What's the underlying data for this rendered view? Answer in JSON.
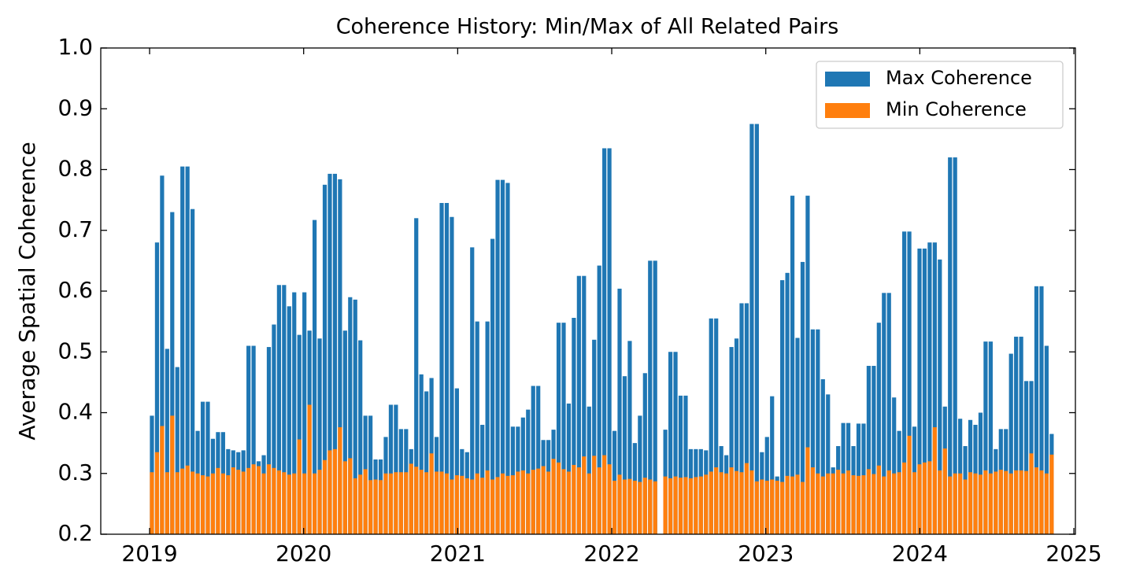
{
  "chart_data": {
    "type": "bar",
    "title": "Coherence History: Min/Max of All Related Pairs",
    "y_label": "Average Spatial Coherence",
    "xlim": [
      2018.683,
      2025.01
    ],
    "xticks": [
      2019,
      2020,
      2021,
      2022,
      2023,
      2024,
      2025
    ],
    "ylim": [
      0.2,
      1.0
    ],
    "yticks": [
      0.2,
      0.3,
      0.4,
      0.5,
      0.6,
      0.7,
      0.8,
      0.9,
      {
        "value": 1.0,
        "label": "1.0"
      }
    ],
    "legend": "upper right",
    "x": [
      2019.015,
      2019.048,
      2019.081,
      2019.114,
      2019.147,
      2019.18,
      2019.213,
      2019.246,
      2019.279,
      2019.312,
      2019.345,
      2019.378,
      2019.411,
      2019.444,
      2019.477,
      2019.51,
      2019.543,
      2019.576,
      2019.609,
      2019.642,
      2019.675,
      2019.708,
      2019.741,
      2019.774,
      2019.807,
      2019.84,
      2019.873,
      2019.906,
      2019.939,
      2019.972,
      2020.005,
      2020.038,
      2020.071,
      2020.104,
      2020.137,
      2020.17,
      2020.203,
      2020.236,
      2020.269,
      2020.302,
      2020.335,
      2020.368,
      2020.401,
      2020.434,
      2020.467,
      2020.5,
      2020.533,
      2020.566,
      2020.599,
      2020.632,
      2020.665,
      2020.698,
      2020.731,
      2020.764,
      2020.797,
      2020.83,
      2020.863,
      2020.896,
      2020.929,
      2020.962,
      2020.995,
      2021.028,
      2021.061,
      2021.094,
      2021.127,
      2021.16,
      2021.193,
      2021.226,
      2021.259,
      2021.292,
      2021.325,
      2021.358,
      2021.391,
      2021.424,
      2021.457,
      2021.49,
      2021.523,
      2021.556,
      2021.589,
      2021.622,
      2021.655,
      2021.688,
      2021.721,
      2021.754,
      2021.787,
      2021.82,
      2021.853,
      2021.886,
      2021.919,
      2021.952,
      2021.985,
      2022.018,
      2022.051,
      2022.084,
      2022.117,
      2022.15,
      2022.183,
      2022.216,
      2022.249,
      2022.282,
      2022.348,
      2022.381,
      2022.414,
      2022.447,
      2022.48,
      2022.513,
      2022.546,
      2022.579,
      2022.612,
      2022.645,
      2022.678,
      2022.711,
      2022.744,
      2022.777,
      2022.81,
      2022.843,
      2022.876,
      2022.909,
      2022.942,
      2022.975,
      2023.008,
      2023.041,
      2023.074,
      2023.107,
      2023.14,
      2023.173,
      2023.206,
      2023.239,
      2023.272,
      2023.305,
      2023.338,
      2023.371,
      2023.404,
      2023.437,
      2023.47,
      2023.503,
      2023.536,
      2023.569,
      2023.602,
      2023.635,
      2023.668,
      2023.701,
      2023.734,
      2023.767,
      2023.8,
      2023.833,
      2023.866,
      2023.899,
      2023.932,
      2023.965,
      2023.998,
      2024.031,
      2024.064,
      2024.097,
      2024.13,
      2024.163,
      2024.196,
      2024.229,
      2024.262,
      2024.295,
      2024.328,
      2024.361,
      2024.394,
      2024.427,
      2024.46,
      2024.493,
      2024.526,
      2024.559,
      2024.592,
      2024.625,
      2024.658,
      2024.691,
      2024.724,
      2024.757,
      2024.79,
      2024.823,
      2024.856
    ],
    "series": [
      {
        "name": "Max Coherence",
        "color": "#1f77b4",
        "values": [
          0.395,
          0.68,
          0.79,
          0.505,
          0.73,
          0.475,
          0.805,
          0.805,
          0.735,
          0.37,
          0.418,
          0.418,
          0.357,
          0.368,
          0.368,
          0.34,
          0.338,
          0.335,
          0.338,
          0.51,
          0.51,
          0.32,
          0.33,
          0.508,
          0.545,
          0.61,
          0.61,
          0.575,
          0.598,
          0.528,
          0.598,
          0.535,
          0.717,
          0.522,
          0.775,
          0.793,
          0.793,
          0.784,
          0.535,
          0.59,
          0.586,
          0.519,
          0.395,
          0.395,
          0.323,
          0.323,
          0.36,
          0.413,
          0.413,
          0.373,
          0.373,
          0.34,
          0.72,
          0.463,
          0.435,
          0.457,
          0.36,
          0.745,
          0.745,
          0.722,
          0.44,
          0.34,
          0.335,
          0.672,
          0.55,
          0.38,
          0.55,
          0.686,
          0.783,
          0.783,
          0.778,
          0.377,
          0.377,
          0.392,
          0.405,
          0.444,
          0.444,
          0.355,
          0.355,
          0.372,
          0.548,
          0.548,
          0.415,
          0.556,
          0.625,
          0.625,
          0.41,
          0.52,
          0.642,
          0.835,
          0.835,
          0.37,
          0.604,
          0.46,
          0.518,
          0.35,
          0.395,
          0.465,
          0.65,
          0.65,
          0.372,
          0.5,
          0.5,
          0.428,
          0.428,
          0.34,
          0.34,
          0.34,
          0.338,
          0.555,
          0.555,
          0.345,
          0.33,
          0.508,
          0.522,
          0.58,
          0.58,
          0.875,
          0.875,
          0.335,
          0.36,
          0.427,
          0.295,
          0.618,
          0.63,
          0.757,
          0.523,
          0.648,
          0.757,
          0.537,
          0.537,
          0.455,
          0.43,
          0.31,
          0.345,
          0.383,
          0.383,
          0.345,
          0.382,
          0.382,
          0.477,
          0.477,
          0.548,
          0.597,
          0.597,
          0.425,
          0.37,
          0.698,
          0.698,
          0.377,
          0.67,
          0.67,
          0.68,
          0.68,
          0.652,
          0.41,
          0.82,
          0.82,
          0.39,
          0.345,
          0.388,
          0.38,
          0.4,
          0.517,
          0.517,
          0.34,
          0.373,
          0.373,
          0.497,
          0.525,
          0.525,
          0.452,
          0.452,
          0.608,
          0.608,
          0.51,
          0.365
        ]
      },
      {
        "name": "Min Coherence",
        "color": "#ff7f0e",
        "values": [
          0.302,
          0.335,
          0.378,
          0.302,
          0.395,
          0.302,
          0.308,
          0.313,
          0.303,
          0.3,
          0.297,
          0.295,
          0.3,
          0.309,
          0.3,
          0.297,
          0.31,
          0.306,
          0.303,
          0.309,
          0.315,
          0.312,
          0.3,
          0.315,
          0.309,
          0.305,
          0.302,
          0.298,
          0.3,
          0.356,
          0.3,
          0.413,
          0.3,
          0.306,
          0.322,
          0.338,
          0.34,
          0.376,
          0.32,
          0.325,
          0.292,
          0.298,
          0.307,
          0.289,
          0.29,
          0.289,
          0.3,
          0.3,
          0.302,
          0.302,
          0.302,
          0.316,
          0.311,
          0.306,
          0.302,
          0.333,
          0.303,
          0.303,
          0.3,
          0.29,
          0.297,
          0.296,
          0.292,
          0.29,
          0.3,
          0.293,
          0.305,
          0.29,
          0.294,
          0.3,
          0.296,
          0.297,
          0.303,
          0.305,
          0.3,
          0.306,
          0.308,
          0.312,
          0.303,
          0.324,
          0.318,
          0.307,
          0.303,
          0.314,
          0.31,
          0.328,
          0.3,
          0.329,
          0.31,
          0.33,
          0.315,
          0.288,
          0.298,
          0.29,
          0.291,
          0.288,
          0.286,
          0.293,
          0.29,
          0.287,
          0.295,
          0.292,
          0.295,
          0.293,
          0.294,
          0.292,
          0.294,
          0.295,
          0.298,
          0.303,
          0.31,
          0.302,
          0.3,
          0.31,
          0.304,
          0.302,
          0.317,
          0.305,
          0.287,
          0.29,
          0.288,
          0.29,
          0.288,
          0.286,
          0.296,
          0.295,
          0.298,
          0.286,
          0.343,
          0.31,
          0.3,
          0.295,
          0.3,
          0.3,
          0.306,
          0.3,
          0.305,
          0.297,
          0.296,
          0.297,
          0.307,
          0.299,
          0.313,
          0.295,
          0.305,
          0.3,
          0.302,
          0.318,
          0.362,
          0.302,
          0.315,
          0.318,
          0.32,
          0.376,
          0.305,
          0.341,
          0.295,
          0.3,
          0.3,
          0.29,
          0.302,
          0.3,
          0.298,
          0.305,
          0.3,
          0.303,
          0.306,
          0.304,
          0.3,
          0.305,
          0.305,
          0.304,
          0.333,
          0.31,
          0.305,
          0.3,
          0.331
        ]
      }
    ]
  }
}
